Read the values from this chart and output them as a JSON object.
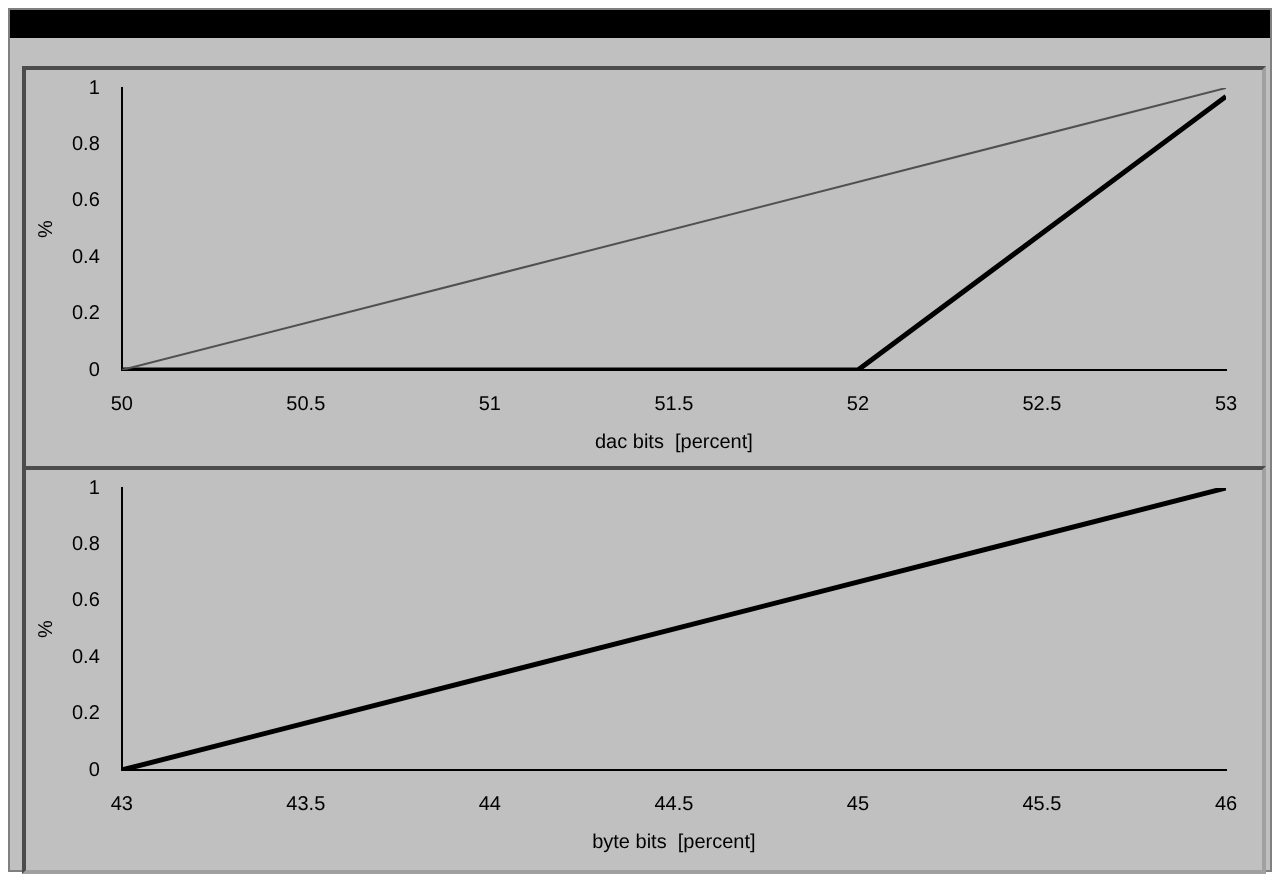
{
  "chart_data": [
    {
      "type": "line",
      "xlabel": "dac bits  [percent]",
      "ylabel": "%",
      "xlim": [
        50,
        53
      ],
      "xticks": [
        50,
        50.5,
        51,
        51.5,
        52,
        52.5,
        53
      ],
      "ylim": [
        0,
        1
      ],
      "yticks": [
        0,
        0.2,
        0.4,
        0.6,
        0.8,
        1
      ],
      "grid": false,
      "legend": false,
      "series": [
        {
          "color": "#505050",
          "x": [
            50,
            53
          ],
          "values": [
            0,
            1
          ]
        },
        {
          "color": "#000000",
          "x": [
            50,
            52,
            53
          ],
          "values": [
            0,
            0,
            0.97
          ]
        }
      ]
    },
    {
      "type": "line",
      "xlabel": "byte bits  [percent]",
      "ylabel": "%",
      "xlim": [
        43,
        46
      ],
      "xticks": [
        43,
        43.5,
        44,
        44.5,
        45,
        45.5,
        46
      ],
      "ylim": [
        0,
        1
      ],
      "yticks": [
        0,
        0.2,
        0.4,
        0.6,
        0.8,
        1
      ],
      "grid": false,
      "legend": false,
      "series": [
        {
          "color": "#000000",
          "x": [
            43,
            46
          ],
          "values": [
            0,
            1
          ]
        }
      ]
    }
  ]
}
